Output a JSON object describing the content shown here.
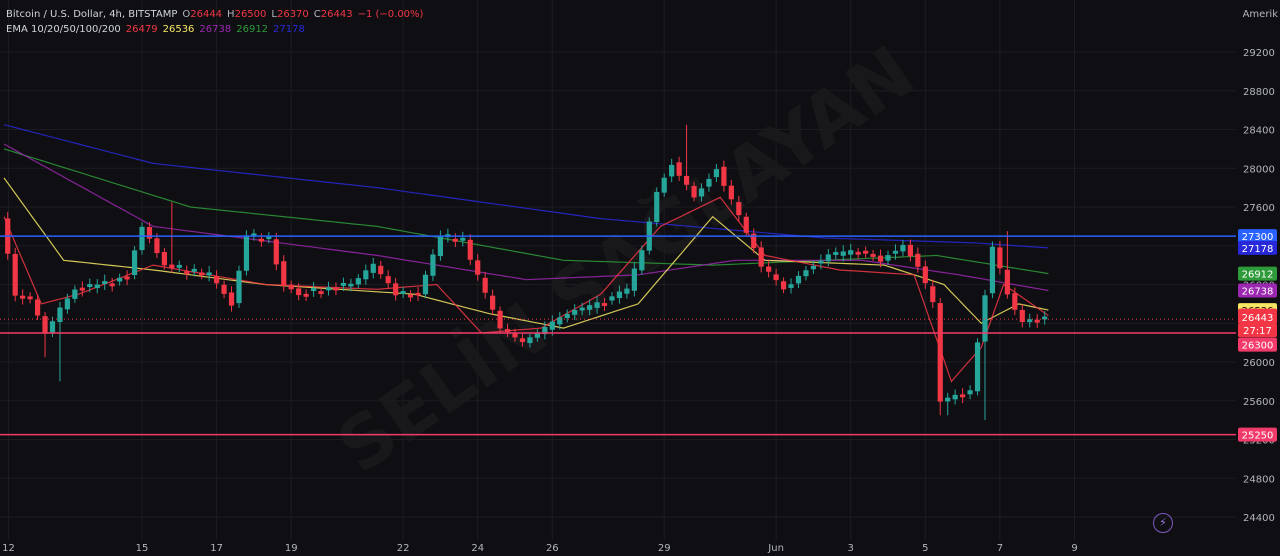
{
  "header": {
    "symbol": "Bitcoin / U.S. Dollar, 4h, BITSTAMP",
    "o_label": "O",
    "o_value": "26444",
    "h_label": "H",
    "h_value": "26500",
    "l_label": "L",
    "l_value": "26370",
    "c_label": "C",
    "c_value": "26443",
    "change": "−1 (−0.00%)",
    "timezone": "Amerik"
  },
  "ema_legend": {
    "label": "EMA 10/20/50/100/200",
    "values": [
      "26479",
      "26536",
      "26738",
      "26912",
      "27178"
    ]
  },
  "watermark": "SELİN SAĞLAYAN",
  "colors": {
    "background": "#0f0f13",
    "bull": "#26a69a",
    "bear": "#f23645",
    "ema10": "#f23645",
    "ema20": "#f5e663",
    "ema50": "#9c27b0",
    "ema100": "#2e9b3a",
    "ema200": "#2828d8",
    "hline_blue": "#2962ff",
    "hline_pink": "#f23b6a"
  },
  "chart_data": {
    "type": "candlestick",
    "ylim": [
      24200,
      29600
    ],
    "y_ticks": [
      24400,
      24800,
      25200,
      25600,
      26000,
      26400,
      26800,
      27200,
      27600,
      28000,
      28400,
      28800,
      29200
    ],
    "x_ticks": [
      {
        "label": "12",
        "x": 0.6
      },
      {
        "label": "15",
        "x": 18.5
      },
      {
        "label": "17",
        "x": 28.5
      },
      {
        "label": "19",
        "x": 38.5
      },
      {
        "label": "22",
        "x": 53.5
      },
      {
        "label": "24",
        "x": 63.5
      },
      {
        "label": "26",
        "x": 73.5
      },
      {
        "label": "29",
        "x": 88.5
      },
      {
        "label": "Jun",
        "x": 103.5
      },
      {
        "label": "3",
        "x": 113.5
      },
      {
        "label": "5",
        "x": 123.5
      },
      {
        "label": "7",
        "x": 133.5
      },
      {
        "label": "9",
        "x": 143.5
      }
    ],
    "horizontal_levels": [
      {
        "value": 27300,
        "label": "27300",
        "color": "#2962ff"
      },
      {
        "value": 26300,
        "label": "26300",
        "color": "#f23b6a"
      },
      {
        "value": 25250,
        "label": "25250",
        "color": "#f23b6a"
      }
    ],
    "last_price": {
      "value": 26443,
      "label": "26443",
      "countdown": "27:17"
    },
    "price_labels": [
      {
        "value": 27178,
        "label": "27178",
        "color": "#2828d8"
      },
      {
        "value": 26912,
        "label": "26912",
        "color": "#2e9b3a"
      },
      {
        "value": 26738,
        "label": "26738",
        "color": "#9c27b0"
      },
      {
        "value": 26536,
        "label": "26536",
        "color": "#f5e663"
      },
      {
        "value": 26479,
        "label": "26479",
        "color": "#f23645"
      }
    ],
    "ema_anchors": [
      {
        "name": "EMA 200",
        "values": [
          [
            0,
            28450
          ],
          [
            20,
            28050
          ],
          [
            50,
            27800
          ],
          [
            80,
            27480
          ],
          [
            110,
            27280
          ],
          [
            130,
            27230
          ],
          [
            140,
            27178
          ]
        ]
      },
      {
        "name": "EMA 100",
        "values": [
          [
            0,
            28200
          ],
          [
            25,
            27600
          ],
          [
            50,
            27400
          ],
          [
            75,
            27050
          ],
          [
            95,
            27000
          ],
          [
            110,
            27050
          ],
          [
            125,
            27100
          ],
          [
            140,
            26912
          ]
        ]
      },
      {
        "name": "EMA 50",
        "values": [
          [
            0,
            28250
          ],
          [
            20,
            27400
          ],
          [
            50,
            27100
          ],
          [
            70,
            26850
          ],
          [
            85,
            26900
          ],
          [
            98,
            27050
          ],
          [
            115,
            27050
          ],
          [
            128,
            26900
          ],
          [
            140,
            26738
          ]
        ]
      },
      {
        "name": "EMA 20",
        "values": [
          [
            0,
            27900
          ],
          [
            8,
            27050
          ],
          [
            20,
            26950
          ],
          [
            35,
            26800
          ],
          [
            55,
            26700
          ],
          [
            65,
            26500
          ],
          [
            75,
            26350
          ],
          [
            85,
            26600
          ],
          [
            95,
            27500
          ],
          [
            102,
            27050
          ],
          [
            118,
            27000
          ],
          [
            126,
            26800
          ],
          [
            131,
            26400
          ],
          [
            136,
            26600
          ],
          [
            140,
            26536
          ]
        ]
      },
      {
        "name": "EMA 10",
        "values": [
          [
            0,
            27500
          ],
          [
            5,
            26600
          ],
          [
            10,
            26700
          ],
          [
            20,
            27000
          ],
          [
            35,
            26800
          ],
          [
            50,
            26750
          ],
          [
            58,
            26800
          ],
          [
            64,
            26300
          ],
          [
            72,
            26350
          ],
          [
            80,
            26700
          ],
          [
            88,
            27400
          ],
          [
            96,
            27700
          ],
          [
            102,
            27100
          ],
          [
            112,
            26950
          ],
          [
            122,
            26900
          ],
          [
            127,
            25800
          ],
          [
            131,
            26150
          ],
          [
            134,
            26800
          ],
          [
            140,
            26479
          ]
        ]
      }
    ],
    "candle_anchors": [
      [
        0,
        27500
      ],
      [
        2,
        26700
      ],
      [
        4,
        26650
      ],
      [
        6,
        26300
      ],
      [
        8,
        26550
      ],
      [
        10,
        26750
      ],
      [
        14,
        26800
      ],
      [
        17,
        26900
      ],
      [
        19,
        27400
      ],
      [
        22,
        27000
      ],
      [
        24,
        26950
      ],
      [
        28,
        26900
      ],
      [
        31,
        26600
      ],
      [
        33,
        27300
      ],
      [
        36,
        27250
      ],
      [
        38,
        26800
      ],
      [
        40,
        26700
      ],
      [
        43,
        26750
      ],
      [
        47,
        26800
      ],
      [
        50,
        27000
      ],
      [
        53,
        26700
      ],
      [
        56,
        26700
      ],
      [
        59,
        27300
      ],
      [
        62,
        27250
      ],
      [
        65,
        26700
      ],
      [
        67,
        26350
      ],
      [
        70,
        26200
      ],
      [
        73,
        26350
      ],
      [
        76,
        26500
      ],
      [
        80,
        26600
      ],
      [
        84,
        26750
      ],
      [
        86,
        27150
      ],
      [
        88,
        27750
      ],
      [
        90,
        28050
      ],
      [
        93,
        27700
      ],
      [
        96,
        28000
      ],
      [
        99,
        27500
      ],
      [
        102,
        27000
      ],
      [
        105,
        26750
      ],
      [
        108,
        26950
      ],
      [
        111,
        27100
      ],
      [
        115,
        27150
      ],
      [
        118,
        27050
      ],
      [
        121,
        27200
      ],
      [
        123,
        27000
      ],
      [
        125,
        26600
      ],
      [
        126,
        25600
      ],
      [
        128,
        25650
      ],
      [
        130,
        25700
      ],
      [
        131,
        26200
      ],
      [
        133,
        27200
      ],
      [
        135,
        26700
      ],
      [
        137,
        26400
      ],
      [
        139,
        26450
      ],
      [
        140,
        26443
      ]
    ],
    "candle_spikes": [
      {
        "i": 5,
        "low": 26050
      },
      {
        "i": 7,
        "low": 25800
      },
      {
        "i": 22,
        "high": 27650
      },
      {
        "i": 91,
        "high": 28450
      },
      {
        "i": 125,
        "low": 25450
      },
      {
        "i": 131,
        "low": 25400
      },
      {
        "i": 126,
        "low": 25450
      },
      {
        "i": 134,
        "high": 27350
      }
    ]
  }
}
